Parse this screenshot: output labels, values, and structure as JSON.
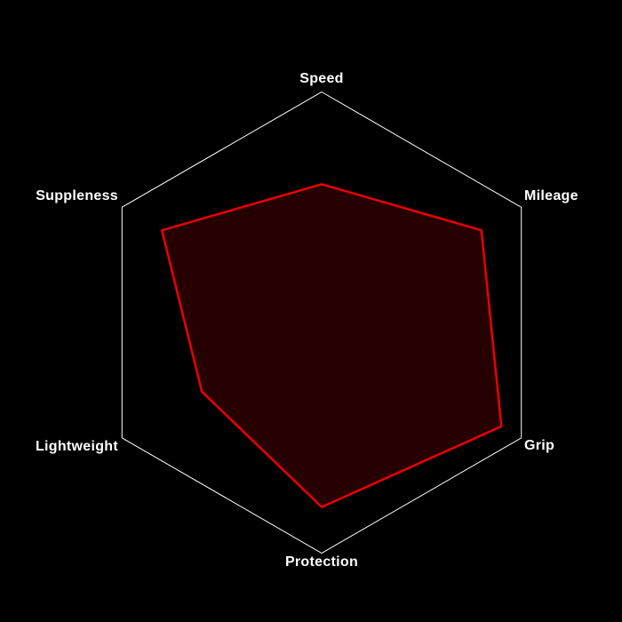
{
  "chart_data": {
    "type": "radar",
    "axes": [
      {
        "label": "Speed",
        "value": 6
      },
      {
        "label": "Mileage",
        "value": 8
      },
      {
        "label": "Grip",
        "value": 9
      },
      {
        "label": "Protection",
        "value": 8
      },
      {
        "label": "Lightweight",
        "value": 6
      },
      {
        "label": "Suppleness",
        "value": 8
      }
    ],
    "max": 10,
    "grid": "single-outer-hexagon",
    "legend": "none",
    "title": "",
    "colors": {
      "background": "#000000",
      "grid_line": "#ffffff",
      "series_stroke": "#eb0000",
      "series_fill": "#eb0000",
      "series_fill_opacity": "0.16",
      "label": "#ffffff"
    }
  }
}
